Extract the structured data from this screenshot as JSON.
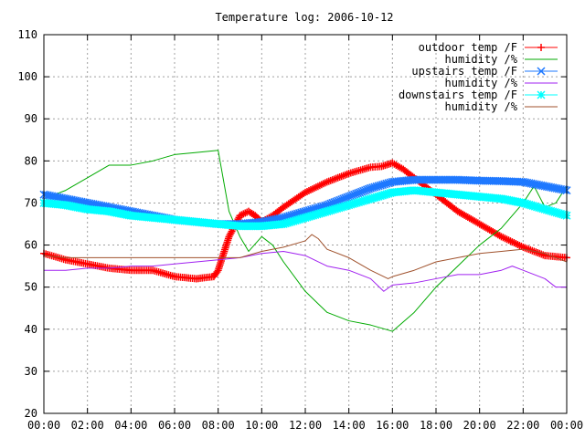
{
  "chart_data": {
    "type": "line",
    "title": "Temperature log: 2006-10-12",
    "xlabel": "",
    "ylabel": "",
    "xlim": [
      0,
      24
    ],
    "ylim": [
      20,
      110
    ],
    "grid": true,
    "legend_position": "top-right",
    "x_tick_labels": [
      "00:00",
      "02:00",
      "04:00",
      "06:00",
      "08:00",
      "10:00",
      "12:00",
      "14:00",
      "16:00",
      "18:00",
      "20:00",
      "22:00",
      "00:00"
    ],
    "y_tick_labels": [
      "20",
      "30",
      "40",
      "50",
      "60",
      "70",
      "80",
      "90",
      "100",
      "110"
    ],
    "series": [
      {
        "name": "outdoor temp /F",
        "color": "#ff0000",
        "marker": "plus",
        "points": [
          [
            0,
            58
          ],
          [
            1,
            56.5
          ],
          [
            2,
            55.5
          ],
          [
            3,
            54.5
          ],
          [
            4,
            54
          ],
          [
            5,
            54
          ],
          [
            6,
            52.5
          ],
          [
            7,
            52
          ],
          [
            7.8,
            52.5
          ],
          [
            8,
            54
          ],
          [
            8.5,
            62
          ],
          [
            9,
            67
          ],
          [
            9.4,
            68
          ],
          [
            9.7,
            67
          ],
          [
            10,
            65.5
          ],
          [
            10.5,
            67
          ],
          [
            11,
            69
          ],
          [
            12,
            72.5
          ],
          [
            13,
            75
          ],
          [
            14,
            77
          ],
          [
            15,
            78.5
          ],
          [
            15.5,
            78.7
          ],
          [
            16,
            79.5
          ],
          [
            16.5,
            78
          ],
          [
            17,
            76
          ],
          [
            18,
            72
          ],
          [
            19,
            68
          ],
          [
            20,
            65
          ],
          [
            21,
            62
          ],
          [
            22,
            59.5
          ],
          [
            23,
            57.5
          ],
          [
            24,
            57
          ]
        ]
      },
      {
        "name": "humidity /%",
        "color": "#00aa00",
        "marker": "none",
        "points": [
          [
            0,
            71
          ],
          [
            1,
            73
          ],
          [
            2,
            76
          ],
          [
            3,
            79
          ],
          [
            4,
            79
          ],
          [
            5,
            80
          ],
          [
            6,
            81.5
          ],
          [
            7,
            82
          ],
          [
            8,
            82.5
          ],
          [
            8.5,
            68
          ],
          [
            9,
            62
          ],
          [
            9.4,
            58.5
          ],
          [
            10,
            62
          ],
          [
            10.5,
            60
          ],
          [
            11,
            56
          ],
          [
            12,
            49
          ],
          [
            13,
            44
          ],
          [
            14,
            42
          ],
          [
            15,
            41
          ],
          [
            16,
            39.5
          ],
          [
            17,
            44
          ],
          [
            18,
            50
          ],
          [
            19,
            55
          ],
          [
            20,
            60
          ],
          [
            21,
            64
          ],
          [
            22,
            70
          ],
          [
            22.5,
            74
          ],
          [
            23,
            69
          ],
          [
            23.5,
            70
          ],
          [
            24,
            74
          ]
        ]
      },
      {
        "name": "upstairs temp /F",
        "color": "#1e78ff",
        "marker": "x",
        "points": [
          [
            0,
            72
          ],
          [
            1,
            71
          ],
          [
            2,
            70
          ],
          [
            3,
            69
          ],
          [
            4,
            68
          ],
          [
            5,
            67
          ],
          [
            6,
            66
          ],
          [
            7,
            65.5
          ],
          [
            8,
            65
          ],
          [
            9,
            65
          ],
          [
            10,
            65.5
          ],
          [
            11,
            66.5
          ],
          [
            12,
            68
          ],
          [
            13,
            69.5
          ],
          [
            14,
            71.5
          ],
          [
            15,
            73.5
          ],
          [
            16,
            75
          ],
          [
            17,
            75.5
          ],
          [
            18,
            75.5
          ],
          [
            19,
            75.5
          ],
          [
            20,
            75.3
          ],
          [
            21,
            75.2
          ],
          [
            22,
            75
          ],
          [
            23,
            74
          ],
          [
            24,
            73
          ]
        ]
      },
      {
        "name": "humidity /%",
        "color": "#a020f0",
        "marker": "none",
        "points": [
          [
            0,
            54
          ],
          [
            1,
            54
          ],
          [
            2,
            54.5
          ],
          [
            3,
            54.5
          ],
          [
            4,
            55
          ],
          [
            5,
            55
          ],
          [
            6,
            55.5
          ],
          [
            7,
            56
          ],
          [
            8,
            56.5
          ],
          [
            9,
            57
          ],
          [
            10,
            58
          ],
          [
            11,
            58.5
          ],
          [
            12,
            57.5
          ],
          [
            13,
            55
          ],
          [
            14,
            54
          ],
          [
            15,
            52
          ],
          [
            15.6,
            49
          ],
          [
            16,
            50.5
          ],
          [
            17,
            51
          ],
          [
            18,
            52
          ],
          [
            19,
            53
          ],
          [
            20,
            53
          ],
          [
            21,
            54
          ],
          [
            21.5,
            55
          ],
          [
            22,
            54
          ],
          [
            23,
            52
          ],
          [
            23.5,
            50
          ],
          [
            24,
            50
          ]
        ]
      },
      {
        "name": "downstairs temp /F",
        "color": "#00ffff",
        "marker": "star",
        "points": [
          [
            0,
            70
          ],
          [
            1,
            69.5
          ],
          [
            2,
            68.5
          ],
          [
            3,
            68
          ],
          [
            4,
            67
          ],
          [
            5,
            66.5
          ],
          [
            6,
            66
          ],
          [
            7,
            65.5
          ],
          [
            8,
            65
          ],
          [
            9,
            64.5
          ],
          [
            10,
            64.5
          ],
          [
            11,
            65
          ],
          [
            12,
            66.5
          ],
          [
            13,
            68
          ],
          [
            14,
            69.5
          ],
          [
            15,
            71
          ],
          [
            16,
            72.5
          ],
          [
            17,
            73
          ],
          [
            18,
            72.5
          ],
          [
            19,
            72
          ],
          [
            20,
            71.5
          ],
          [
            21,
            71
          ],
          [
            22,
            70
          ],
          [
            23,
            68.5
          ],
          [
            24,
            67
          ]
        ]
      },
      {
        "name": "humidity /%",
        "color": "#a0522d",
        "marker": "none",
        "points": [
          [
            0,
            57.5
          ],
          [
            1,
            57
          ],
          [
            2,
            57
          ],
          [
            3,
            57
          ],
          [
            4,
            57
          ],
          [
            5,
            57
          ],
          [
            6,
            57
          ],
          [
            7,
            57
          ],
          [
            8,
            57
          ],
          [
            9,
            57
          ],
          [
            10,
            58.5
          ],
          [
            11,
            59.5
          ],
          [
            12,
            61
          ],
          [
            12.3,
            62.5
          ],
          [
            12.6,
            61.5
          ],
          [
            13,
            59
          ],
          [
            14,
            57
          ],
          [
            15,
            54
          ],
          [
            15.8,
            52
          ],
          [
            16,
            52.5
          ],
          [
            17,
            54
          ],
          [
            18,
            56
          ],
          [
            19,
            57
          ],
          [
            20,
            58
          ],
          [
            21,
            58.5
          ],
          [
            22,
            59
          ],
          [
            23,
            58
          ],
          [
            24,
            56
          ]
        ]
      }
    ]
  }
}
